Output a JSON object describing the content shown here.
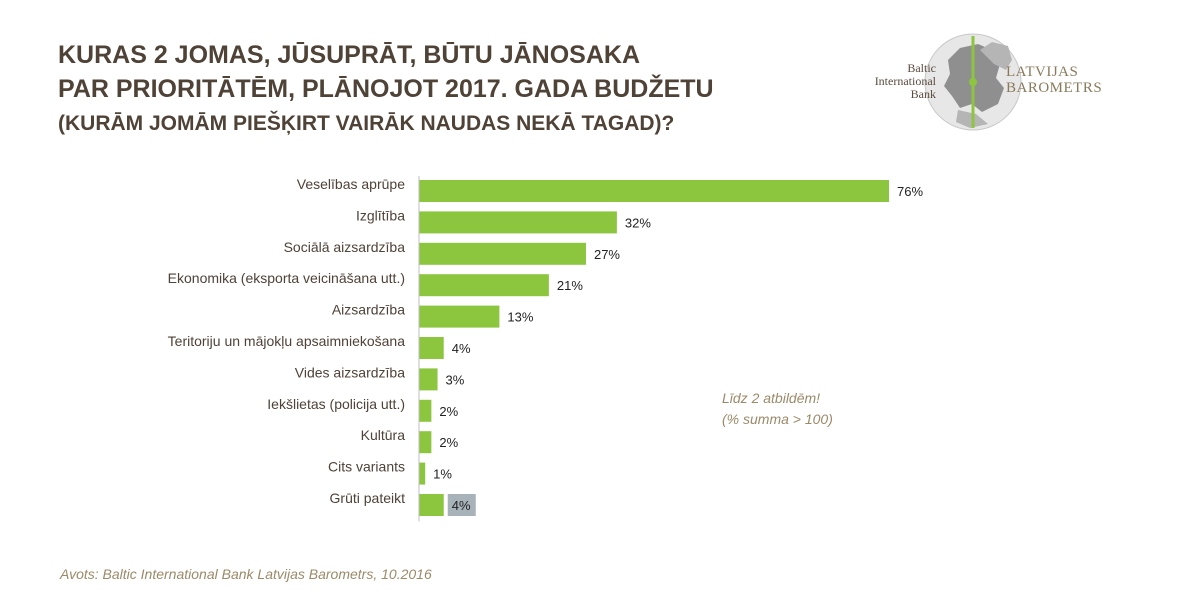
{
  "header": {
    "title_line1": "KURAS 2 JOMAS, JŪSUPRĀT, BŪTU JĀNOSAKA",
    "title_line2": "PAR PRIORITĀTĒM, PLĀNOJOT 2017. GADA BUDŽETU",
    "subtitle": "(KURĀM JOMĀM PIEŠĶIRT VAIRĀK NAUDAS NEKĀ TAGAD)?"
  },
  "logo": {
    "bank_line1": "Baltic",
    "bank_line2": "International",
    "bank_line3": "Bank",
    "brand_line1": "LATVIJAS",
    "brand_line2": "BAROMETRS"
  },
  "note": {
    "line1": "Līdz 2 atbildēm!",
    "line2": "(% summa > 100)"
  },
  "source": "Avots: Baltic International Bank Latvijas Barometrs, 10.2016",
  "colors": {
    "bar": "#8cc63f",
    "highlight_label_bg": "#a7b2b9",
    "text": "#4f4237",
    "note": "#9b8a6a"
  },
  "chart_data": {
    "type": "bar",
    "orientation": "horizontal",
    "categories": [
      "Veselības aprūpe",
      "Izglītība",
      "Sociālā aizsardzība",
      "Ekonomika (eksporta veicināšana utt.)",
      "Aizsardzība",
      "Teritoriju un mājokļu apsaimniekošana",
      "Vides aizsardzība",
      "Iekšlietas (policija utt.)",
      "Kultūra",
      "Cits variants",
      "Grūti pateikt"
    ],
    "values": [
      76,
      32,
      27,
      21,
      13,
      4,
      3,
      2,
      2,
      1,
      4
    ],
    "value_labels": [
      "76%",
      "32%",
      "27%",
      "21%",
      "13%",
      "4%",
      "3%",
      "2%",
      "2%",
      "1%",
      "4%"
    ],
    "highlighted_category": "Grūti pateikt",
    "xlim": [
      0,
      76
    ],
    "grid": false
  }
}
